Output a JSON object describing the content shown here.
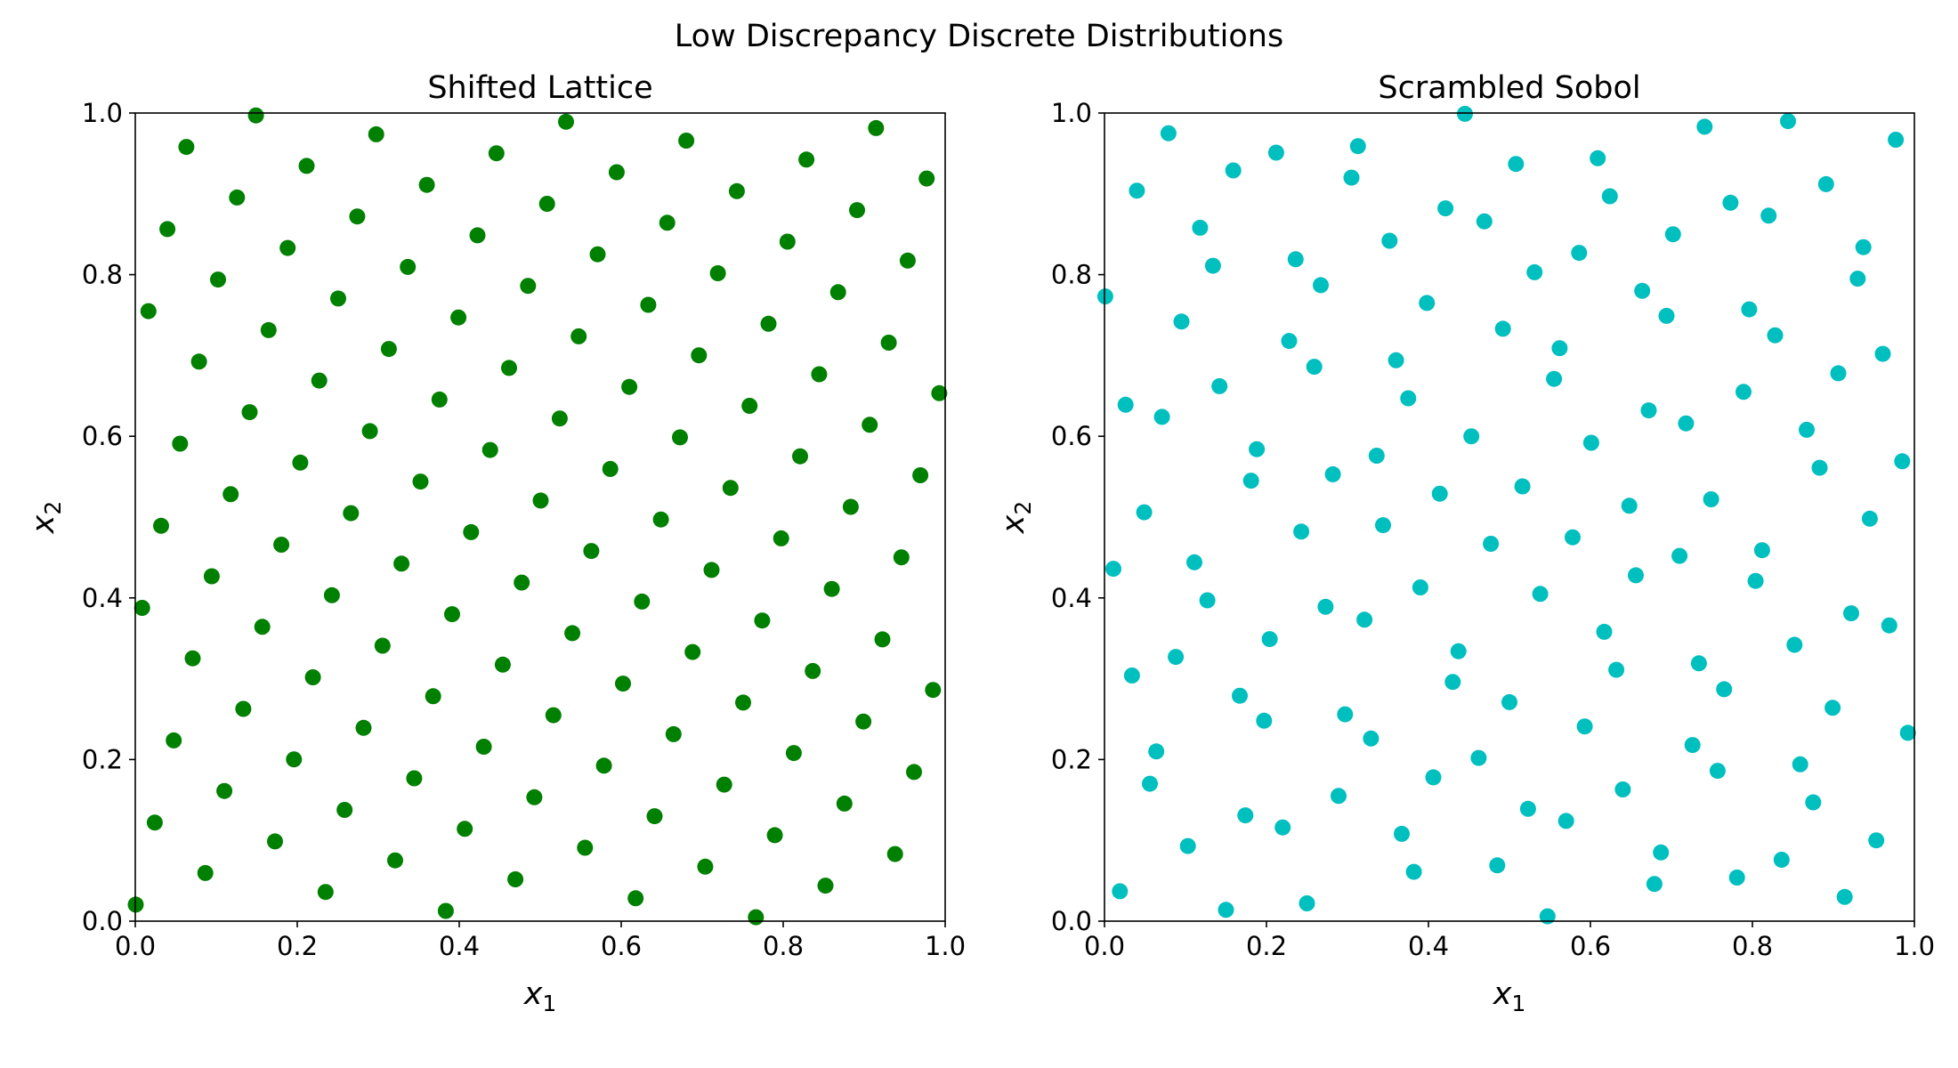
{
  "figure_title": "Low Discrepancy Discrete Distributions",
  "chart_data": [
    {
      "type": "scatter",
      "title": "Shifted Lattice",
      "xlabel": "x",
      "xlabel_sub": "1",
      "ylabel": "x",
      "ylabel_sub": "2",
      "xlim": [
        0,
        1
      ],
      "ylim": [
        0,
        1
      ],
      "xticks": [
        "0.0",
        "0.2",
        "0.4",
        "0.6",
        "0.8",
        "1.0"
      ],
      "yticks": [
        "0.0",
        "0.2",
        "0.4",
        "0.6",
        "0.8",
        "1.0"
      ],
      "grid": false,
      "color": "#008000",
      "lattice": {
        "n": 128,
        "g1": 1,
        "g2": 47,
        "shift_x": 0.0006,
        "shift_y": 0.0205
      }
    },
    {
      "type": "scatter",
      "title": "Scrambled Sobol",
      "xlabel": "x",
      "xlabel_sub": "1",
      "ylabel": "x",
      "ylabel_sub": "2",
      "xlim": [
        0,
        1
      ],
      "ylim": [
        0,
        1
      ],
      "xticks": [
        "0.0",
        "0.2",
        "0.4",
        "0.6",
        "0.8",
        "1.0"
      ],
      "yticks": [
        "0.0",
        "0.2",
        "0.4",
        "0.6",
        "0.8",
        "1.0"
      ],
      "grid": false,
      "color": "#00bfbf",
      "points": [
        [
          0.001,
          0.773
        ],
        [
          0.011,
          0.436
        ],
        [
          0.019,
          0.037
        ],
        [
          0.026,
          0.639
        ],
        [
          0.034,
          0.304
        ],
        [
          0.04,
          0.904
        ],
        [
          0.049,
          0.506
        ],
        [
          0.056,
          0.17
        ],
        [
          0.064,
          0.21
        ],
        [
          0.071,
          0.624
        ],
        [
          0.079,
          0.975
        ],
        [
          0.088,
          0.327
        ],
        [
          0.095,
          0.742
        ],
        [
          0.103,
          0.093
        ],
        [
          0.111,
          0.444
        ],
        [
          0.118,
          0.858
        ],
        [
          0.127,
          0.397
        ],
        [
          0.134,
          0.811
        ],
        [
          0.142,
          0.662
        ],
        [
          0.15,
          0.014
        ],
        [
          0.159,
          0.929
        ],
        [
          0.167,
          0.279
        ],
        [
          0.174,
          0.131
        ],
        [
          0.181,
          0.545
        ],
        [
          0.188,
          0.584
        ],
        [
          0.197,
          0.248
        ],
        [
          0.204,
          0.349
        ],
        [
          0.212,
          0.951
        ],
        [
          0.22,
          0.116
        ],
        [
          0.228,
          0.718
        ],
        [
          0.236,
          0.819
        ],
        [
          0.243,
          0.482
        ],
        [
          0.25,
          0.022
        ],
        [
          0.259,
          0.686
        ],
        [
          0.267,
          0.787
        ],
        [
          0.273,
          0.389
        ],
        [
          0.282,
          0.553
        ],
        [
          0.289,
          0.155
        ],
        [
          0.297,
          0.256
        ],
        [
          0.305,
          0.92
        ],
        [
          0.313,
          0.959
        ],
        [
          0.321,
          0.373
        ],
        [
          0.329,
          0.226
        ],
        [
          0.336,
          0.576
        ],
        [
          0.344,
          0.49
        ],
        [
          0.352,
          0.842
        ],
        [
          0.36,
          0.694
        ],
        [
          0.367,
          0.108
        ],
        [
          0.375,
          0.647
        ],
        [
          0.382,
          0.061
        ],
        [
          0.39,
          0.413
        ],
        [
          0.398,
          0.765
        ],
        [
          0.406,
          0.178
        ],
        [
          0.414,
          0.529
        ],
        [
          0.421,
          0.882
        ],
        [
          0.43,
          0.296
        ],
        [
          0.437,
          0.334
        ],
        [
          0.445,
          0.999
        ],
        [
          0.453,
          0.6
        ],
        [
          0.462,
          0.202
        ],
        [
          0.469,
          0.866
        ],
        [
          0.477,
          0.467
        ],
        [
          0.485,
          0.069
        ],
        [
          0.492,
          0.733
        ],
        [
          0.5,
          0.271
        ],
        [
          0.508,
          0.937
        ],
        [
          0.516,
          0.538
        ],
        [
          0.523,
          0.139
        ],
        [
          0.531,
          0.803
        ],
        [
          0.538,
          0.405
        ],
        [
          0.547,
          0.006
        ],
        [
          0.555,
          0.671
        ],
        [
          0.562,
          0.709
        ],
        [
          0.57,
          0.124
        ],
        [
          0.578,
          0.475
        ],
        [
          0.586,
          0.827
        ],
        [
          0.593,
          0.241
        ],
        [
          0.601,
          0.592
        ],
        [
          0.609,
          0.944
        ],
        [
          0.617,
          0.358
        ],
        [
          0.624,
          0.897
        ],
        [
          0.632,
          0.311
        ],
        [
          0.64,
          0.163
        ],
        [
          0.648,
          0.514
        ],
        [
          0.656,
          0.428
        ],
        [
          0.664,
          0.78
        ],
        [
          0.672,
          0.632
        ],
        [
          0.679,
          0.046
        ],
        [
          0.687,
          0.085
        ],
        [
          0.694,
          0.749
        ],
        [
          0.702,
          0.85
        ],
        [
          0.71,
          0.452
        ],
        [
          0.718,
          0.616
        ],
        [
          0.726,
          0.218
        ],
        [
          0.734,
          0.319
        ],
        [
          0.741,
          0.983
        ],
        [
          0.749,
          0.522
        ],
        [
          0.757,
          0.186
        ],
        [
          0.765,
          0.287
        ],
        [
          0.773,
          0.889
        ],
        [
          0.781,
          0.054
        ],
        [
          0.789,
          0.655
        ],
        [
          0.796,
          0.757
        ],
        [
          0.804,
          0.421
        ],
        [
          0.812,
          0.459
        ],
        [
          0.82,
          0.873
        ],
        [
          0.828,
          0.725
        ],
        [
          0.836,
          0.076
        ],
        [
          0.844,
          0.99
        ],
        [
          0.852,
          0.342
        ],
        [
          0.859,
          0.194
        ],
        [
          0.867,
          0.608
        ],
        [
          0.875,
          0.147
        ],
        [
          0.883,
          0.561
        ],
        [
          0.891,
          0.912
        ],
        [
          0.899,
          0.264
        ],
        [
          0.906,
          0.678
        ],
        [
          0.914,
          0.03
        ],
        [
          0.922,
          0.381
        ],
        [
          0.93,
          0.795
        ],
        [
          0.937,
          0.834
        ],
        [
          0.945,
          0.498
        ],
        [
          0.953,
          0.1
        ],
        [
          0.961,
          0.702
        ],
        [
          0.969,
          0.366
        ],
        [
          0.977,
          0.967
        ],
        [
          0.985,
          0.569
        ],
        [
          0.992,
          0.233
        ]
      ]
    }
  ]
}
